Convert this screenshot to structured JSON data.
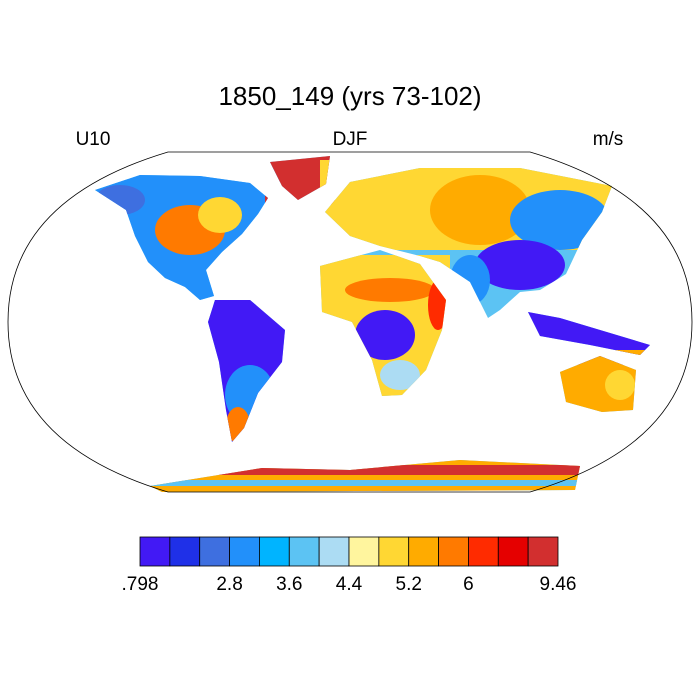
{
  "header": {
    "title": "1850_149 (yrs 73-102)",
    "left": "U10",
    "center": "DJF",
    "right": "m/s"
  },
  "colorbar": {
    "colors": [
      "#4219f5",
      "#1f30e8",
      "#3e6fe0",
      "#2290fa",
      "#00b4ff",
      "#5cc3f3",
      "#acdcf3",
      "#fff59e",
      "#ffd733",
      "#ffab00",
      "#ff7a00",
      "#ff2b00",
      "#e50000",
      "#d22f2f"
    ],
    "labels": [
      {
        "value": 0.798,
        "label": ".798"
      },
      2.8,
      3.6,
      4.4,
      5.2,
      6,
      9.46
    ]
  }
}
